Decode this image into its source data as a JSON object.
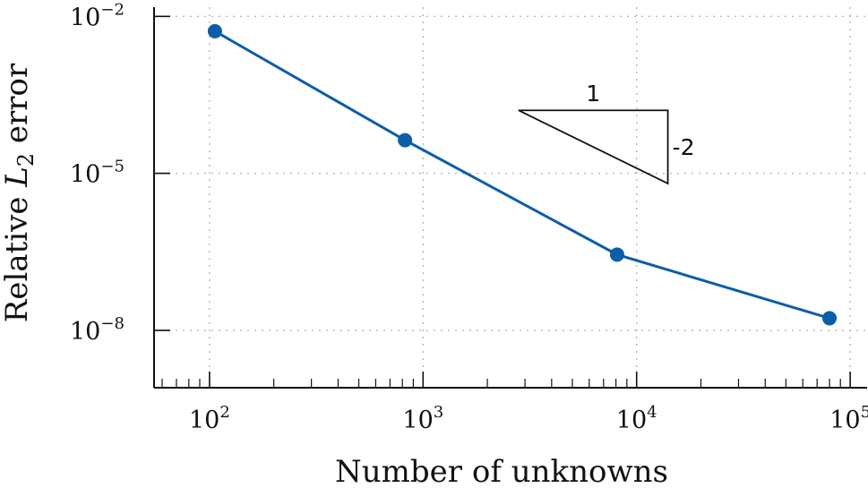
{
  "chart_data": {
    "type": "line",
    "x_scale": "log",
    "y_scale": "log",
    "xlabel": "Number of unknowns",
    "ylabel": {
      "prefix": "Relative ",
      "symbol": "L",
      "subscript": "2",
      "suffix": " error"
    },
    "xlim": [
      55,
      120000
    ],
    "ylim": [
      8e-10,
      0.015
    ],
    "grid": true,
    "x_ticks": [
      {
        "value": 100,
        "base": "10",
        "exp": "2"
      },
      {
        "value": 1000,
        "base": "10",
        "exp": "3"
      },
      {
        "value": 10000,
        "base": "10",
        "exp": "4"
      },
      {
        "value": 100000,
        "base": "10",
        "exp": "5"
      }
    ],
    "y_ticks": [
      {
        "value": 0.01,
        "base": "10",
        "exp": "−2"
      },
      {
        "value": 1e-05,
        "base": "10",
        "exp": "−5"
      },
      {
        "value": 1e-08,
        "base": "10",
        "exp": "−8"
      }
    ],
    "series": [
      {
        "color": "#0b5ea8",
        "x": [
          106,
          823,
          8100,
          80000
        ],
        "y": [
          0.0052,
          4.3e-05,
          2.8e-07,
          1.7e-08
        ]
      }
    ],
    "slope_triangle": {
      "run_label": "1",
      "rise_label": "-2",
      "x": [
        2800,
        14000
      ],
      "y": [
        0.00016,
        6.4e-06
      ]
    }
  }
}
